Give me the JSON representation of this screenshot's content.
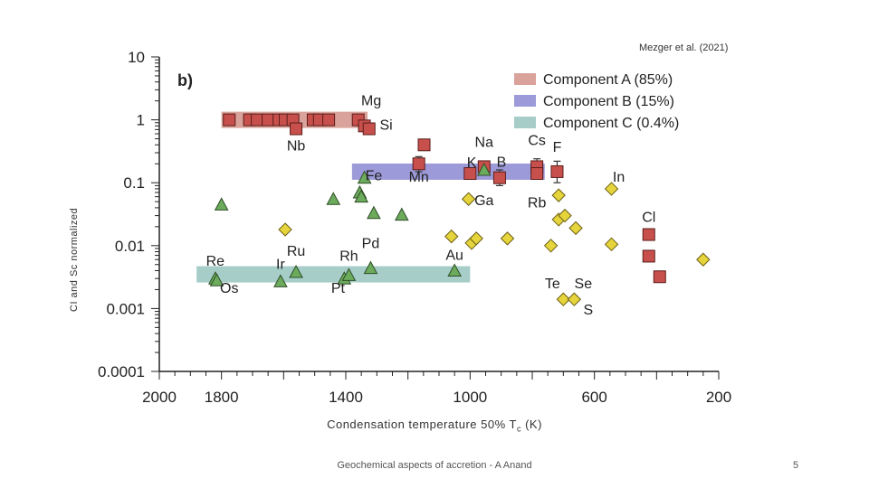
{
  "slide": {
    "citation": "Mezger et al. (2021)",
    "footer": "Geochemical aspects of accretion - A Anand",
    "page_number": "5"
  },
  "chart_data": {
    "type": "scatter",
    "panel_label": "b)",
    "xlabel": "Condensation temperature 50% T",
    "xlabel_sub": "c",
    "xlabel_unit": " (K)",
    "ylabel": "CI and Sc normalized",
    "x_reversed": true,
    "xlim": [
      2000,
      200
    ],
    "ylim": [
      0.0001,
      10
    ],
    "yscale": "log",
    "x_ticks": [
      2000,
      1800,
      1400,
      1000,
      600,
      200
    ],
    "y_ticks": [
      "10",
      "1",
      "0.1",
      "0.01",
      "0.001",
      "0.0001"
    ],
    "y_tick_values": [
      10,
      1,
      0.1,
      0.01,
      0.001,
      0.0001
    ],
    "bands": [
      {
        "name": "Component A (85%)",
        "color": "#d9a29a",
        "x": [
          1800,
          1330
        ],
        "y": 1.0
      },
      {
        "name": "Component B (15%)",
        "color": "#9c9ad8",
        "x": [
          1380,
          760
        ],
        "y": 0.15
      },
      {
        "name": "Component C (0.4%)",
        "color": "#a7cdc9",
        "x": [
          1880,
          1000
        ],
        "y": 0.0035
      }
    ],
    "series": [
      {
        "marker": "square",
        "color": "#c8504c",
        "points": [
          {
            "x": 1775,
            "y": 1.0
          },
          {
            "x": 1710,
            "y": 1.0
          },
          {
            "x": 1685,
            "y": 1.0
          },
          {
            "x": 1650,
            "y": 1.0
          },
          {
            "x": 1615,
            "y": 1.0
          },
          {
            "x": 1595,
            "y": 1.0
          },
          {
            "x": 1570,
            "y": 1.0
          },
          {
            "x": 1505,
            "y": 1.0
          },
          {
            "x": 1485,
            "y": 1.0
          },
          {
            "x": 1455,
            "y": 1.0
          },
          {
            "x": 1360,
            "y": 1.0
          },
          {
            "x": 1340,
            "y": 0.8,
            "label": "Si"
          },
          {
            "x": 1325,
            "y": 0.72
          },
          {
            "x": 1560,
            "y": 0.72,
            "label": "Nb"
          },
          {
            "x": 1148,
            "y": 0.4
          },
          {
            "x": 1165,
            "y": 0.2,
            "label": "Mn",
            "err": [
              0.15,
              0.26
            ]
          },
          {
            "x": 1000,
            "y": 0.14
          },
          {
            "x": 955,
            "y": 0.18,
            "label": "Na"
          },
          {
            "x": 905,
            "y": 0.12,
            "label": "B",
            "err": [
              0.09,
              0.16
            ]
          },
          {
            "x": 785,
            "y": 0.18,
            "label": "Cs",
            "err": [
              0.13,
              0.24
            ]
          },
          {
            "x": 785,
            "y": 0.14
          },
          {
            "x": 720,
            "y": 0.15,
            "label": "F",
            "err": [
              0.1,
              0.22
            ]
          },
          {
            "x": 425,
            "y": 0.015,
            "label": "Cl"
          },
          {
            "x": 425,
            "y": 0.0068
          },
          {
            "x": 390,
            "y": 0.0032
          }
        ]
      },
      {
        "marker": "triangle",
        "color": "#6cab5c",
        "points": [
          {
            "x": 1800,
            "y": 0.045
          },
          {
            "x": 1820,
            "y": 0.003,
            "label": "Re"
          },
          {
            "x": 1815,
            "y": 0.0028
          },
          {
            "x": 1610,
            "y": 0.0027,
            "label": "Ir"
          },
          {
            "x": 1560,
            "y": 0.0038,
            "label": "Ru"
          },
          {
            "x": 1405,
            "y": 0.003
          },
          {
            "x": 1390,
            "y": 0.0034,
            "label": "Rh"
          },
          {
            "x": 1320,
            "y": 0.0044,
            "label": "Pd"
          },
          {
            "x": 1440,
            "y": 0.055
          },
          {
            "x": 1310,
            "y": 0.033
          },
          {
            "x": 1355,
            "y": 0.07
          },
          {
            "x": 1350,
            "y": 0.06
          },
          {
            "x": 1340,
            "y": 0.12
          },
          {
            "x": 1220,
            "y": 0.031
          },
          {
            "x": 1050,
            "y": 0.004,
            "label": "Au"
          },
          {
            "x": 955,
            "y": 0.16
          }
        ]
      },
      {
        "marker": "diamond",
        "color": "#e6d43c",
        "points": [
          {
            "x": 1595,
            "y": 0.018
          },
          {
            "x": 1005,
            "y": 0.055
          },
          {
            "x": 1060,
            "y": 0.014
          },
          {
            "x": 995,
            "y": 0.011
          },
          {
            "x": 980,
            "y": 0.013
          },
          {
            "x": 880,
            "y": 0.013
          },
          {
            "x": 740,
            "y": 0.01
          },
          {
            "x": 715,
            "y": 0.063
          },
          {
            "x": 715,
            "y": 0.026
          },
          {
            "x": 695,
            "y": 0.03
          },
          {
            "x": 660,
            "y": 0.019
          },
          {
            "x": 545,
            "y": 0.08,
            "label": "In"
          },
          {
            "x": 545,
            "y": 0.0105
          },
          {
            "x": 700,
            "y": 0.0014,
            "label": "Te"
          },
          {
            "x": 665,
            "y": 0.0014,
            "label": "Se"
          },
          {
            "x": 250,
            "y": 0.006
          }
        ]
      }
    ],
    "annotations": [
      {
        "text": "Mg",
        "x": 1318,
        "y": 2.0
      },
      {
        "text": "Fe",
        "x": 1310,
        "y": 0.128
      },
      {
        "text": "K",
        "x": 995,
        "y": 0.21
      },
      {
        "text": "Ga",
        "x": 955,
        "y": 0.052
      },
      {
        "text": "Rb",
        "x": 785,
        "y": 0.048
      },
      {
        "text": "Os",
        "x": 1775,
        "y": 0.0021
      },
      {
        "text": "Pt",
        "x": 1425,
        "y": 0.0021
      },
      {
        "text": "S",
        "x": 620,
        "y": 0.00095
      }
    ]
  }
}
